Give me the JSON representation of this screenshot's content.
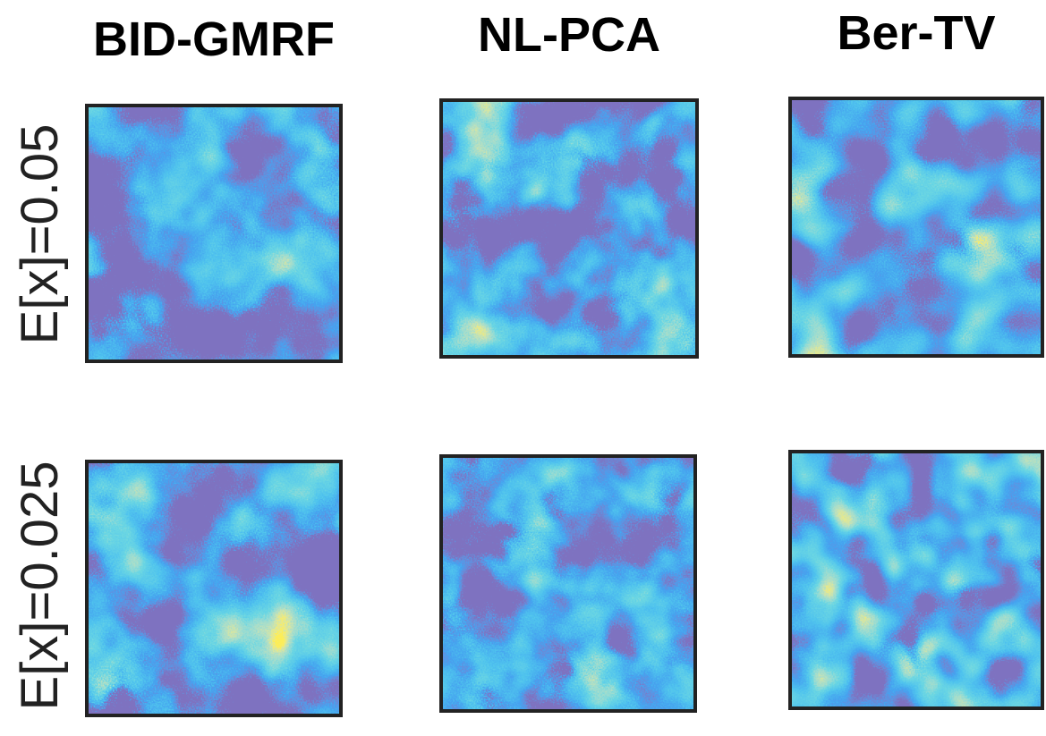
{
  "columns": [
    "BID-GMRF",
    "NL-PCA",
    "Ber-TV"
  ],
  "rows": [
    "E[x]=0.05",
    "E[x]=0.025"
  ]
}
